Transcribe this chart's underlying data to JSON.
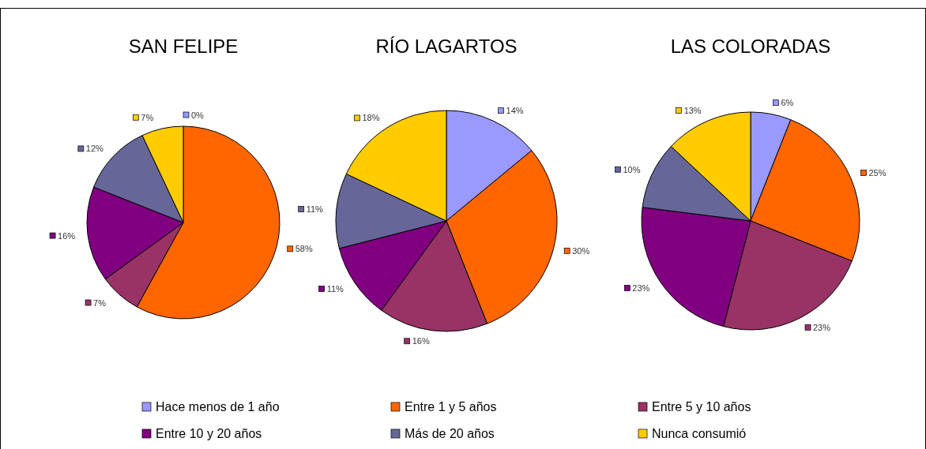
{
  "chart_data": [
    {
      "type": "pie",
      "title": "SAN FELIPE",
      "categories": [
        "Hace menos de 1 año",
        "Entre 1 y 5 años",
        "Entre 5 y 10 años",
        "Entre 10 y 20 años",
        "Más de 20 años",
        "Nunca consumió"
      ],
      "values": [
        0,
        58,
        7,
        16,
        12,
        7
      ],
      "value_labels": [
        "0%",
        "58%",
        "7%",
        "16%",
        "12%",
        "7%"
      ],
      "colors": [
        "#9999ff",
        "#ff6600",
        "#993366",
        "#800080",
        "#666699",
        "#ffcc00"
      ],
      "legend": "bottom"
    },
    {
      "type": "pie",
      "title": "RÍO LAGARTOS",
      "values": [
        14,
        30,
        16,
        11,
        11,
        18
      ],
      "value_labels": [
        "14%",
        "30%",
        "16%",
        "11%",
        "11%",
        "18%"
      ],
      "colors": [
        "#9999ff",
        "#ff6600",
        "#993366",
        "#800080",
        "#666699",
        "#ffcc00"
      ]
    },
    {
      "type": "pie",
      "title": "LAS COLORADAS",
      "values": [
        6,
        25,
        23,
        23,
        10,
        13
      ],
      "value_labels": [
        "6%",
        "25%",
        "23%",
        "23%",
        "10%",
        "13%"
      ],
      "colors": [
        "#9999ff",
        "#ff6600",
        "#993366",
        "#800080",
        "#666699",
        "#ffcc00"
      ]
    }
  ]
}
